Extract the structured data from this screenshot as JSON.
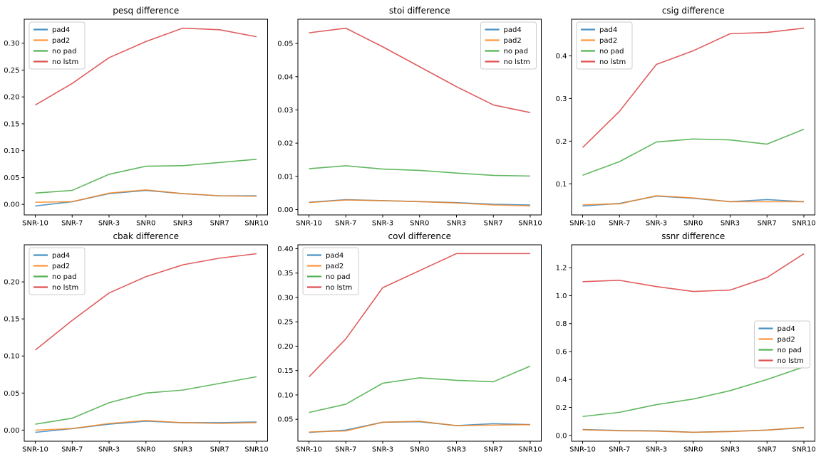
{
  "figure": {
    "background": "#ffffff",
    "x_axis_categories": [
      "SNR-10",
      "SNR-7",
      "SNR-3",
      "SNR0",
      "SNR3",
      "SNR7",
      "SNR10"
    ],
    "legend_entries": [
      "pad4",
      "pad2",
      "no pad",
      "no lstm"
    ],
    "series_palette": {
      "pad4": "#1f77b4",
      "pad2": "#ff7f0e",
      "no pad": "#2ca02c",
      "no lstm": "#d62728"
    }
  },
  "chart_data": [
    {
      "id": "pesq-difference",
      "type": "line",
      "title": "pesq difference",
      "categories": [
        "SNR-10",
        "SNR-7",
        "SNR-3",
        "SNR0",
        "SNR3",
        "SNR7",
        "SNR10"
      ],
      "xlim": [
        -0.3,
        6.3
      ],
      "ylim": [
        -0.0196,
        0.3446
      ],
      "yticks": [
        "0.00",
        "0.05",
        "0.10",
        "0.15",
        "0.20",
        "0.25",
        "0.30"
      ],
      "grid": false,
      "legend_position": "upper-left",
      "series": [
        {
          "name": "pad4",
          "color": "#1f77b4",
          "values": [
            -0.003,
            0.005,
            0.02,
            0.026,
            0.02,
            0.016,
            0.016
          ]
        },
        {
          "name": "pad2",
          "color": "#ff7f0e",
          "values": [
            0.004,
            0.005,
            0.021,
            0.027,
            0.02,
            0.016,
            0.015
          ]
        },
        {
          "name": "no pad",
          "color": "#2ca02c",
          "values": [
            0.021,
            0.026,
            0.056,
            0.071,
            0.072,
            0.078,
            0.084
          ]
        },
        {
          "name": "no lstm",
          "color": "#d62728",
          "values": [
            0.185,
            0.225,
            0.273,
            0.303,
            0.328,
            0.325,
            0.312
          ]
        }
      ]
    },
    {
      "id": "stoi-difference",
      "type": "line",
      "title": "stoi difference",
      "categories": [
        "SNR-10",
        "SNR-7",
        "SNR-3",
        "SNR0",
        "SNR3",
        "SNR7",
        "SNR10"
      ],
      "xlim": [
        -0.3,
        6.3
      ],
      "ylim": [
        -0.0016,
        0.0573
      ],
      "yticks": [
        "0.00",
        "0.01",
        "0.02",
        "0.03",
        "0.04",
        "0.05"
      ],
      "grid": false,
      "legend_position": "upper-right",
      "series": [
        {
          "name": "pad4",
          "color": "#1f77b4",
          "values": [
            0.0022,
            0.003,
            0.0027,
            0.0024,
            0.0021,
            0.0016,
            0.0014
          ]
        },
        {
          "name": "pad2",
          "color": "#ff7f0e",
          "values": [
            0.0021,
            0.0029,
            0.0027,
            0.0024,
            0.002,
            0.0014,
            0.0011
          ]
        },
        {
          "name": "no pad",
          "color": "#2ca02c",
          "values": [
            0.0123,
            0.0132,
            0.0122,
            0.0118,
            0.011,
            0.0103,
            0.0101
          ]
        },
        {
          "name": "no lstm",
          "color": "#d62728",
          "values": [
            0.0532,
            0.0546,
            0.049,
            0.043,
            0.037,
            0.0315,
            0.0292
          ]
        }
      ]
    },
    {
      "id": "csig-difference",
      "type": "line",
      "title": "csig difference",
      "categories": [
        "SNR-10",
        "SNR-7",
        "SNR-3",
        "SNR0",
        "SNR3",
        "SNR7",
        "SNR10"
      ],
      "xlim": [
        -0.3,
        6.3
      ],
      "ylim": [
        0.027,
        0.486
      ],
      "yticks": [
        "0.1",
        "0.2",
        "0.3",
        "0.4"
      ],
      "grid": false,
      "legend_position": "upper-left",
      "series": [
        {
          "name": "pad4",
          "color": "#1f77b4",
          "values": [
            0.048,
            0.054,
            0.071,
            0.066,
            0.058,
            0.063,
            0.058
          ]
        },
        {
          "name": "pad2",
          "color": "#ff7f0e",
          "values": [
            0.051,
            0.053,
            0.072,
            0.067,
            0.058,
            0.058,
            0.058
          ]
        },
        {
          "name": "no pad",
          "color": "#2ca02c",
          "values": [
            0.12,
            0.152,
            0.198,
            0.205,
            0.203,
            0.193,
            0.228
          ]
        },
        {
          "name": "no lstm",
          "color": "#d62728",
          "values": [
            0.185,
            0.27,
            0.38,
            0.412,
            0.452,
            0.455,
            0.465
          ]
        }
      ]
    },
    {
      "id": "cbak-difference",
      "type": "line",
      "title": "cbak difference",
      "categories": [
        "SNR-10",
        "SNR-7",
        "SNR-3",
        "SNR0",
        "SNR3",
        "SNR7",
        "SNR10"
      ],
      "xlim": [
        -0.3,
        6.3
      ],
      "ylim": [
        -0.015,
        0.25
      ],
      "yticks": [
        "0.00",
        "0.05",
        "0.10",
        "0.15",
        "0.20"
      ],
      "grid": false,
      "legend_position": "upper-left",
      "series": [
        {
          "name": "pad4",
          "color": "#1f77b4",
          "values": [
            -0.003,
            0.002,
            0.008,
            0.012,
            0.01,
            0.01,
            0.011
          ]
        },
        {
          "name": "pad2",
          "color": "#ff7f0e",
          "values": [
            0.0,
            0.002,
            0.009,
            0.013,
            0.01,
            0.009,
            0.01
          ]
        },
        {
          "name": "no pad",
          "color": "#2ca02c",
          "values": [
            0.008,
            0.016,
            0.037,
            0.05,
            0.054,
            0.063,
            0.072
          ]
        },
        {
          "name": "no lstm",
          "color": "#d62728",
          "values": [
            0.108,
            0.148,
            0.185,
            0.207,
            0.223,
            0.232,
            0.238
          ]
        }
      ]
    },
    {
      "id": "covl-difference",
      "type": "line",
      "title": "covl difference",
      "categories": [
        "SNR-10",
        "SNR-7",
        "SNR-3",
        "SNR0",
        "SNR3",
        "SNR7",
        "SNR10"
      ],
      "xlim": [
        -0.3,
        6.3
      ],
      "ylim": [
        0.005,
        0.408
      ],
      "yticks": [
        "0.05",
        "0.10",
        "0.15",
        "0.20",
        "0.25",
        "0.30",
        "0.35",
        "0.40"
      ],
      "grid": false,
      "legend_position": "upper-left",
      "series": [
        {
          "name": "pad4",
          "color": "#1f77b4",
          "values": [
            0.023,
            0.028,
            0.044,
            0.045,
            0.037,
            0.041,
            0.039
          ]
        },
        {
          "name": "pad2",
          "color": "#ff7f0e",
          "values": [
            0.024,
            0.026,
            0.044,
            0.046,
            0.037,
            0.038,
            0.039
          ]
        },
        {
          "name": "no pad",
          "color": "#2ca02c",
          "values": [
            0.064,
            0.081,
            0.124,
            0.135,
            0.13,
            0.127,
            0.159
          ]
        },
        {
          "name": "no lstm",
          "color": "#d62728",
          "values": [
            0.137,
            0.215,
            0.32,
            0.355,
            0.39,
            0.39,
            0.39
          ]
        }
      ]
    },
    {
      "id": "ssnr-difference",
      "type": "line",
      "title": "ssnr difference",
      "categories": [
        "SNR-10",
        "SNR-7",
        "SNR-3",
        "SNR0",
        "SNR3",
        "SNR7",
        "SNR10"
      ],
      "xlim": [
        -0.3,
        6.3
      ],
      "ylim": [
        -0.042,
        1.364
      ],
      "yticks": [
        "0.0",
        "0.2",
        "0.4",
        "0.6",
        "0.8",
        "1.0",
        "1.2"
      ],
      "grid": false,
      "legend_position": "center-right",
      "series": [
        {
          "name": "pad4",
          "color": "#1f77b4",
          "values": [
            0.042,
            0.035,
            0.032,
            0.022,
            0.028,
            0.038,
            0.055
          ]
        },
        {
          "name": "pad2",
          "color": "#ff7f0e",
          "values": [
            0.04,
            0.033,
            0.03,
            0.022,
            0.027,
            0.038,
            0.057
          ]
        },
        {
          "name": "no pad",
          "color": "#2ca02c",
          "values": [
            0.135,
            0.165,
            0.22,
            0.26,
            0.32,
            0.4,
            0.49
          ]
        },
        {
          "name": "no lstm",
          "color": "#d62728",
          "values": [
            1.1,
            1.11,
            1.065,
            1.03,
            1.04,
            1.13,
            1.3
          ]
        }
      ]
    }
  ]
}
